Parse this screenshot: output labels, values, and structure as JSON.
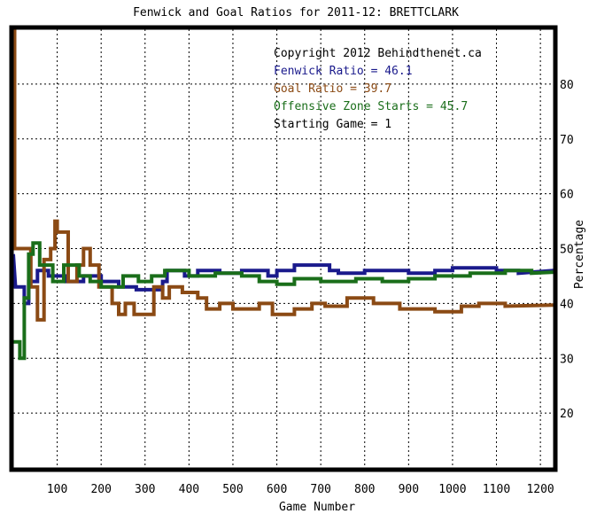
{
  "chart_data": {
    "type": "line",
    "title": "Fenwick and Goal Ratios for 2011-12: BRETTCLARK",
    "xlabel": "Game Number",
    "ylabel": "Percentage",
    "xlim": [
      0,
      1230
    ],
    "ylim": [
      10,
      90
    ],
    "x_ticks": [
      100,
      200,
      300,
      400,
      500,
      600,
      700,
      800,
      900,
      1000,
      1100,
      1200
    ],
    "y_ticks": [
      20,
      30,
      40,
      50,
      60,
      70,
      80
    ],
    "grid": true,
    "legend_position": "top-right",
    "annotations": [
      {
        "text": "Copyright 2012 Behindthenet.ca",
        "color": "#000000"
      },
      {
        "text": "Fenwick Ratio = 46.1",
        "color": "#1a1a8c"
      },
      {
        "text": "Goal Ratio = 39.7",
        "color": "#8b4a14"
      },
      {
        "text": "Offensive Zone Starts = 45.7",
        "color": "#1a6e1a"
      },
      {
        "text": "Starting Game = 1",
        "color": "#000000"
      }
    ],
    "series": [
      {
        "name": "Fenwick Ratio",
        "color": "#1a1a8c",
        "points": [
          [
            0,
            49
          ],
          [
            5,
            43
          ],
          [
            25,
            43
          ],
          [
            25,
            40
          ],
          [
            35,
            40
          ],
          [
            35,
            44
          ],
          [
            55,
            44
          ],
          [
            55,
            46
          ],
          [
            80,
            46
          ],
          [
            80,
            45
          ],
          [
            120,
            45
          ],
          [
            120,
            44
          ],
          [
            160,
            44
          ],
          [
            160,
            45
          ],
          [
            200,
            45
          ],
          [
            200,
            44
          ],
          [
            240,
            44
          ],
          [
            240,
            43
          ],
          [
            280,
            43
          ],
          [
            280,
            42.5
          ],
          [
            340,
            42.5
          ],
          [
            340,
            44
          ],
          [
            350,
            44
          ],
          [
            350,
            46
          ],
          [
            390,
            46
          ],
          [
            390,
            45
          ],
          [
            420,
            45
          ],
          [
            420,
            46
          ],
          [
            470,
            46
          ],
          [
            470,
            45.5
          ],
          [
            520,
            45.5
          ],
          [
            520,
            46
          ],
          [
            580,
            46
          ],
          [
            580,
            45
          ],
          [
            600,
            45
          ],
          [
            600,
            46
          ],
          [
            640,
            46
          ],
          [
            640,
            47
          ],
          [
            720,
            47
          ],
          [
            720,
            46
          ],
          [
            740,
            46
          ],
          [
            740,
            45.5
          ],
          [
            800,
            45.5
          ],
          [
            800,
            46
          ],
          [
            900,
            46
          ],
          [
            900,
            45.5
          ],
          [
            960,
            45.5
          ],
          [
            960,
            46
          ],
          [
            1000,
            46
          ],
          [
            1000,
            46.5
          ],
          [
            1100,
            46.5
          ],
          [
            1100,
            46
          ],
          [
            1150,
            46
          ],
          [
            1150,
            45.5
          ],
          [
            1230,
            46
          ]
        ]
      },
      {
        "name": "Goal Ratio",
        "color": "#8b4a14",
        "points": [
          [
            0,
            90
          ],
          [
            3,
            90
          ],
          [
            3,
            50
          ],
          [
            40,
            50
          ],
          [
            40,
            43
          ],
          [
            55,
            43
          ],
          [
            55,
            37
          ],
          [
            70,
            37
          ],
          [
            70,
            48
          ],
          [
            85,
            48
          ],
          [
            85,
            50
          ],
          [
            95,
            50
          ],
          [
            95,
            55
          ],
          [
            100,
            55
          ],
          [
            100,
            53
          ],
          [
            125,
            53
          ],
          [
            125,
            44
          ],
          [
            145,
            44
          ],
          [
            145,
            47
          ],
          [
            160,
            47
          ],
          [
            160,
            50
          ],
          [
            175,
            50
          ],
          [
            175,
            47
          ],
          [
            195,
            47
          ],
          [
            195,
            43
          ],
          [
            225,
            43
          ],
          [
            225,
            40
          ],
          [
            240,
            40
          ],
          [
            240,
            38
          ],
          [
            255,
            38
          ],
          [
            255,
            40
          ],
          [
            275,
            40
          ],
          [
            275,
            38
          ],
          [
            320,
            38
          ],
          [
            320,
            43
          ],
          [
            340,
            43
          ],
          [
            340,
            41
          ],
          [
            355,
            41
          ],
          [
            355,
            43
          ],
          [
            385,
            43
          ],
          [
            385,
            42
          ],
          [
            420,
            42
          ],
          [
            420,
            41
          ],
          [
            440,
            41
          ],
          [
            440,
            39
          ],
          [
            470,
            39
          ],
          [
            470,
            40
          ],
          [
            500,
            40
          ],
          [
            500,
            39
          ],
          [
            560,
            39
          ],
          [
            560,
            40
          ],
          [
            590,
            40
          ],
          [
            590,
            38
          ],
          [
            640,
            38
          ],
          [
            640,
            39
          ],
          [
            680,
            39
          ],
          [
            680,
            40
          ],
          [
            710,
            40
          ],
          [
            710,
            39.5
          ],
          [
            760,
            39.5
          ],
          [
            760,
            41
          ],
          [
            820,
            41
          ],
          [
            820,
            40
          ],
          [
            880,
            40
          ],
          [
            880,
            39
          ],
          [
            960,
            39
          ],
          [
            960,
            38.5
          ],
          [
            1020,
            38.5
          ],
          [
            1020,
            39.5
          ],
          [
            1060,
            39.5
          ],
          [
            1060,
            40
          ],
          [
            1120,
            40
          ],
          [
            1120,
            39.5
          ],
          [
            1230,
            39.7
          ]
        ]
      },
      {
        "name": "Offensive Zone Starts",
        "color": "#1a6e1a",
        "points": [
          [
            0,
            33
          ],
          [
            15,
            33
          ],
          [
            15,
            30
          ],
          [
            25,
            30
          ],
          [
            25,
            41
          ],
          [
            35,
            41
          ],
          [
            35,
            49
          ],
          [
            45,
            49
          ],
          [
            45,
            51
          ],
          [
            60,
            51
          ],
          [
            60,
            47
          ],
          [
            90,
            47
          ],
          [
            90,
            44
          ],
          [
            115,
            44
          ],
          [
            115,
            47
          ],
          [
            150,
            47
          ],
          [
            150,
            45
          ],
          [
            175,
            45
          ],
          [
            175,
            44
          ],
          [
            200,
            44
          ],
          [
            200,
            43
          ],
          [
            250,
            43
          ],
          [
            250,
            45
          ],
          [
            285,
            45
          ],
          [
            285,
            44
          ],
          [
            315,
            44
          ],
          [
            315,
            45
          ],
          [
            345,
            45
          ],
          [
            345,
            46
          ],
          [
            400,
            46
          ],
          [
            400,
            45
          ],
          [
            460,
            45
          ],
          [
            460,
            45.5
          ],
          [
            520,
            45.5
          ],
          [
            520,
            45
          ],
          [
            560,
            45
          ],
          [
            560,
            44
          ],
          [
            600,
            44
          ],
          [
            600,
            43.5
          ],
          [
            640,
            43.5
          ],
          [
            640,
            44.5
          ],
          [
            700,
            44.5
          ],
          [
            700,
            44
          ],
          [
            780,
            44
          ],
          [
            780,
            44.5
          ],
          [
            840,
            44.5
          ],
          [
            840,
            44
          ],
          [
            900,
            44
          ],
          [
            900,
            44.5
          ],
          [
            960,
            44.5
          ],
          [
            960,
            45
          ],
          [
            1040,
            45
          ],
          [
            1040,
            45.5
          ],
          [
            1120,
            45.5
          ],
          [
            1120,
            46
          ],
          [
            1180,
            46
          ],
          [
            1180,
            45.5
          ],
          [
            1230,
            45.7
          ]
        ]
      }
    ]
  }
}
